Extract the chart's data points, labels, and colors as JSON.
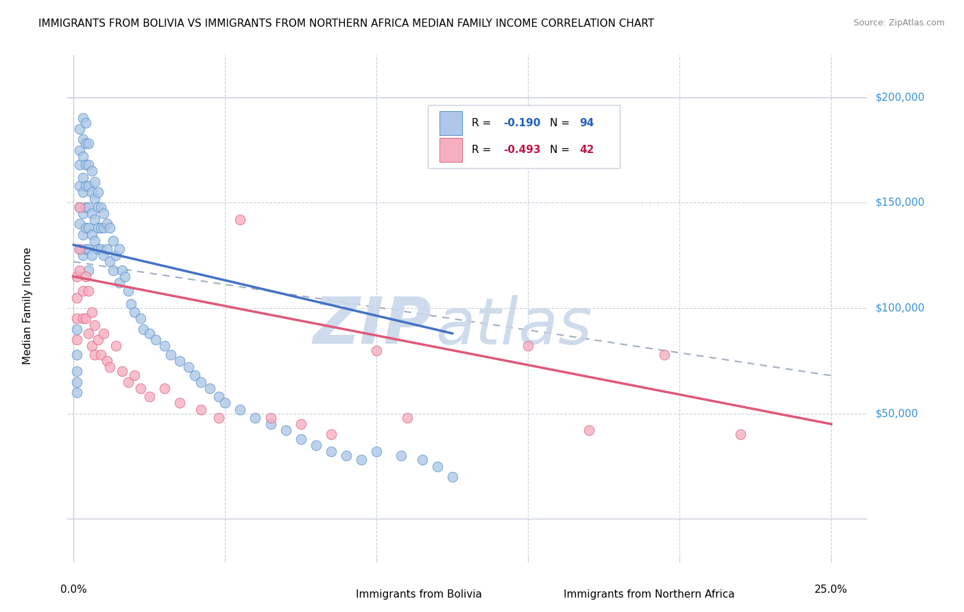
{
  "title": "IMMIGRANTS FROM BOLIVIA VS IMMIGRANTS FROM NORTHERN AFRICA MEDIAN FAMILY INCOME CORRELATION CHART",
  "source": "Source: ZipAtlas.com",
  "ylabel": "Median Family Income",
  "watermark_zip": "ZIP",
  "watermark_atlas": "atlas",
  "bolivia_R": -0.19,
  "bolivia_N": 94,
  "northern_africa_R": -0.493,
  "northern_africa_N": 42,
  "bolivia_color": "#adc8e8",
  "bolivia_edge_color": "#5a8fc8",
  "northern_africa_color": "#f5b0c0",
  "northern_africa_edge_color": "#e06080",
  "bolivia_line_color": "#4472c4",
  "northern_africa_line_color": "#e05878",
  "trend_dash_color": "#a0aec0",
  "yticks": [
    0,
    50000,
    100000,
    150000,
    200000
  ],
  "ytick_labels": [
    "",
    "$50,000",
    "$100,000",
    "$150,000",
    "$200,000"
  ],
  "ylim": [
    -18000,
    220000
  ],
  "xlim": [
    -0.002,
    0.262
  ],
  "bolivia_trend_x0": 0.0,
  "bolivia_trend_y0": 130000,
  "bolivia_trend_x1": 0.125,
  "bolivia_trend_y1": 88000,
  "northern_africa_trend_x0": 0.0,
  "northern_africa_trend_y0": 115000,
  "northern_africa_trend_x1": 0.25,
  "northern_africa_trend_y1": 45000,
  "dash_trend_x0": 0.0,
  "dash_trend_y0": 122000,
  "dash_trend_x1": 0.25,
  "dash_trend_y1": 68000,
  "bolivia_x": [
    0.001,
    0.001,
    0.001,
    0.001,
    0.001,
    0.002,
    0.002,
    0.002,
    0.002,
    0.002,
    0.002,
    0.002,
    0.003,
    0.003,
    0.003,
    0.003,
    0.003,
    0.003,
    0.003,
    0.003,
    0.004,
    0.004,
    0.004,
    0.004,
    0.004,
    0.004,
    0.004,
    0.005,
    0.005,
    0.005,
    0.005,
    0.005,
    0.005,
    0.005,
    0.006,
    0.006,
    0.006,
    0.006,
    0.006,
    0.007,
    0.007,
    0.007,
    0.007,
    0.008,
    0.008,
    0.008,
    0.008,
    0.009,
    0.009,
    0.009,
    0.01,
    0.01,
    0.01,
    0.011,
    0.011,
    0.012,
    0.012,
    0.013,
    0.013,
    0.014,
    0.015,
    0.015,
    0.016,
    0.017,
    0.018,
    0.019,
    0.02,
    0.022,
    0.023,
    0.025,
    0.027,
    0.03,
    0.032,
    0.035,
    0.038,
    0.04,
    0.042,
    0.045,
    0.048,
    0.05,
    0.055,
    0.06,
    0.065,
    0.07,
    0.075,
    0.08,
    0.085,
    0.09,
    0.095,
    0.1,
    0.108,
    0.115,
    0.12,
    0.125
  ],
  "bolivia_y": [
    90000,
    78000,
    70000,
    65000,
    60000,
    185000,
    175000,
    168000,
    158000,
    148000,
    140000,
    128000,
    190000,
    180000,
    172000,
    162000,
    155000,
    145000,
    135000,
    125000,
    188000,
    178000,
    168000,
    158000,
    148000,
    138000,
    128000,
    178000,
    168000,
    158000,
    148000,
    138000,
    128000,
    118000,
    165000,
    155000,
    145000,
    135000,
    125000,
    160000,
    152000,
    142000,
    132000,
    155000,
    148000,
    138000,
    128000,
    148000,
    138000,
    128000,
    145000,
    138000,
    125000,
    140000,
    128000,
    138000,
    122000,
    132000,
    118000,
    125000,
    128000,
    112000,
    118000,
    115000,
    108000,
    102000,
    98000,
    95000,
    90000,
    88000,
    85000,
    82000,
    78000,
    75000,
    72000,
    68000,
    65000,
    62000,
    58000,
    55000,
    52000,
    48000,
    45000,
    42000,
    38000,
    35000,
    32000,
    30000,
    28000,
    32000,
    30000,
    28000,
    25000,
    20000
  ],
  "northern_africa_x": [
    0.001,
    0.001,
    0.001,
    0.001,
    0.002,
    0.002,
    0.002,
    0.003,
    0.003,
    0.004,
    0.004,
    0.005,
    0.005,
    0.006,
    0.006,
    0.007,
    0.007,
    0.008,
    0.009,
    0.01,
    0.011,
    0.012,
    0.014,
    0.016,
    0.018,
    0.02,
    0.022,
    0.025,
    0.03,
    0.035,
    0.042,
    0.048,
    0.055,
    0.065,
    0.075,
    0.085,
    0.1,
    0.11,
    0.15,
    0.17,
    0.195,
    0.22
  ],
  "northern_africa_y": [
    115000,
    105000,
    95000,
    85000,
    148000,
    128000,
    118000,
    108000,
    95000,
    115000,
    95000,
    108000,
    88000,
    98000,
    82000,
    92000,
    78000,
    85000,
    78000,
    88000,
    75000,
    72000,
    82000,
    70000,
    65000,
    68000,
    62000,
    58000,
    62000,
    55000,
    52000,
    48000,
    142000,
    48000,
    45000,
    40000,
    80000,
    48000,
    82000,
    42000,
    78000,
    40000
  ]
}
